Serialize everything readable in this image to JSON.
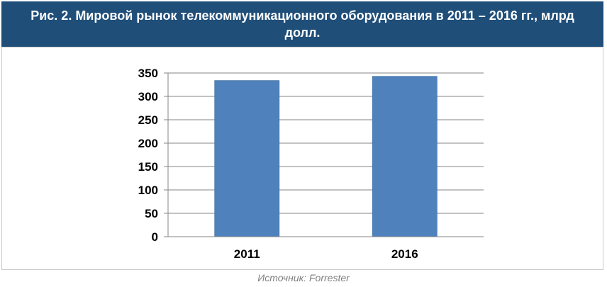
{
  "header": {
    "title": "Рис. 2. Мировой рынок телекоммуникационного оборудования в 2011 – 2016 гг., млрд долл."
  },
  "source": {
    "label": "Источник: Forrester"
  },
  "colors": {
    "header_bg": "#1f4e79",
    "bar": "#4f81bd",
    "grid": "#868686"
  },
  "chart_data": {
    "type": "bar",
    "title": "",
    "xlabel": "",
    "ylabel": "",
    "categories": [
      "2011",
      "2016"
    ],
    "values": [
      334,
      343
    ],
    "ylim": [
      0,
      350
    ],
    "yticks": [
      0,
      50,
      100,
      150,
      200,
      250,
      300,
      350
    ],
    "grid": true,
    "legend": "none"
  }
}
